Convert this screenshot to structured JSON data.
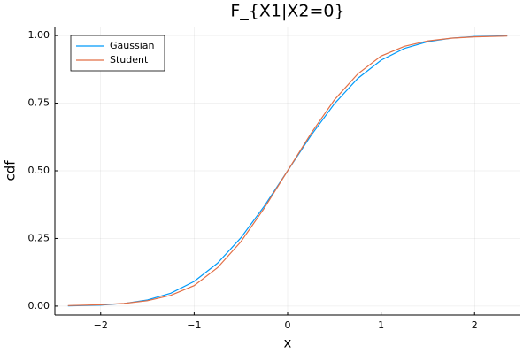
{
  "chart_data": {
    "type": "line",
    "title": "F_{X1|X2=0}",
    "x_label": "x",
    "y_label": "cdf",
    "x": [
      -2.35,
      -2.0,
      -1.75,
      -1.5,
      -1.25,
      -1.0,
      -0.75,
      -0.5,
      -0.25,
      0,
      0.25,
      0.5,
      0.75,
      1.0,
      1.25,
      1.5,
      1.75,
      2.0,
      2.35
    ],
    "series": [
      {
        "name": "Gaussian",
        "color": "#009af9",
        "values": [
          0.0009,
          0.0038,
          0.0098,
          0.0228,
          0.0478,
          0.0912,
          0.1587,
          0.2525,
          0.3694,
          0.5,
          0.6306,
          0.7475,
          0.8413,
          0.9088,
          0.9522,
          0.9772,
          0.9902,
          0.9962,
          0.9991
        ]
      },
      {
        "name": "Student",
        "color": "#e26f46",
        "values": [
          0.002,
          0.005,
          0.01,
          0.02,
          0.04,
          0.076,
          0.142,
          0.238,
          0.362,
          0.5,
          0.638,
          0.762,
          0.858,
          0.924,
          0.96,
          0.98,
          0.99,
          0.995,
          0.998
        ]
      }
    ],
    "xlim": [
      -2.49,
      2.49
    ],
    "xticks": [
      {
        "value": -2,
        "label": "−2"
      },
      {
        "value": -1,
        "label": "−1"
      },
      0,
      1,
      2
    ],
    "ylim": [
      -0.033,
      1.033
    ],
    "yticks": [
      {
        "value": 0,
        "label": "0.00"
      },
      {
        "value": 0.25,
        "label": "0.25"
      },
      {
        "value": 0.5,
        "label": "0.50"
      },
      {
        "value": 0.75,
        "label": "0.75"
      },
      {
        "value": 1,
        "label": "1.00"
      }
    ],
    "grid": true,
    "legend_position": "top-left"
  }
}
